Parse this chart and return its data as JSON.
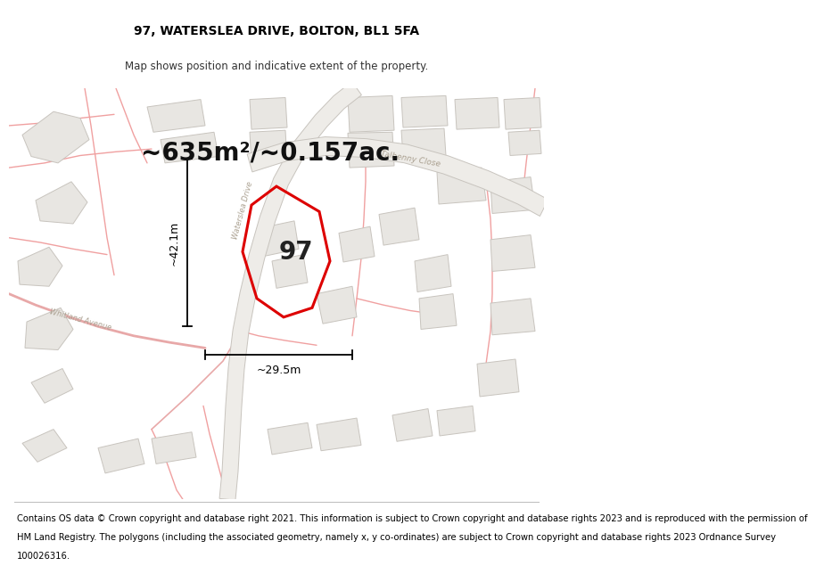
{
  "title": "97, WATERSLEA DRIVE, BOLTON, BL1 5FA",
  "subtitle": "Map shows position and indicative extent of the property.",
  "area_text": "~635m²/~0.157ac.",
  "width_label": "~29.5m",
  "height_label": "~42.1m",
  "plot_number": "97",
  "footer_lines": [
    "Contains OS data © Crown copyright and database right 2021. This information is subject to Crown copyright and database rights 2023 and is reproduced with the permission of",
    "HM Land Registry. The polygons (including the associated geometry, namely x, y co-ordinates) are subject to Crown copyright and database rights 2023 Ordnance Survey",
    "100026316."
  ],
  "map_bg": "#f7f6f4",
  "plot_color": "#dd0000",
  "road_line_color": "#f0a0a0",
  "road_fill_color": "#e8e4e0",
  "road_edge_color": "#c8c0b8",
  "building_color": "#e8e6e2",
  "building_edge": "#c8c4be",
  "label_color": "#aaa090",
  "title_fontsize": 10,
  "subtitle_fontsize": 8.5,
  "area_fontsize": 20,
  "footer_fontsize": 7.2,
  "plot_number_fontsize": 20
}
